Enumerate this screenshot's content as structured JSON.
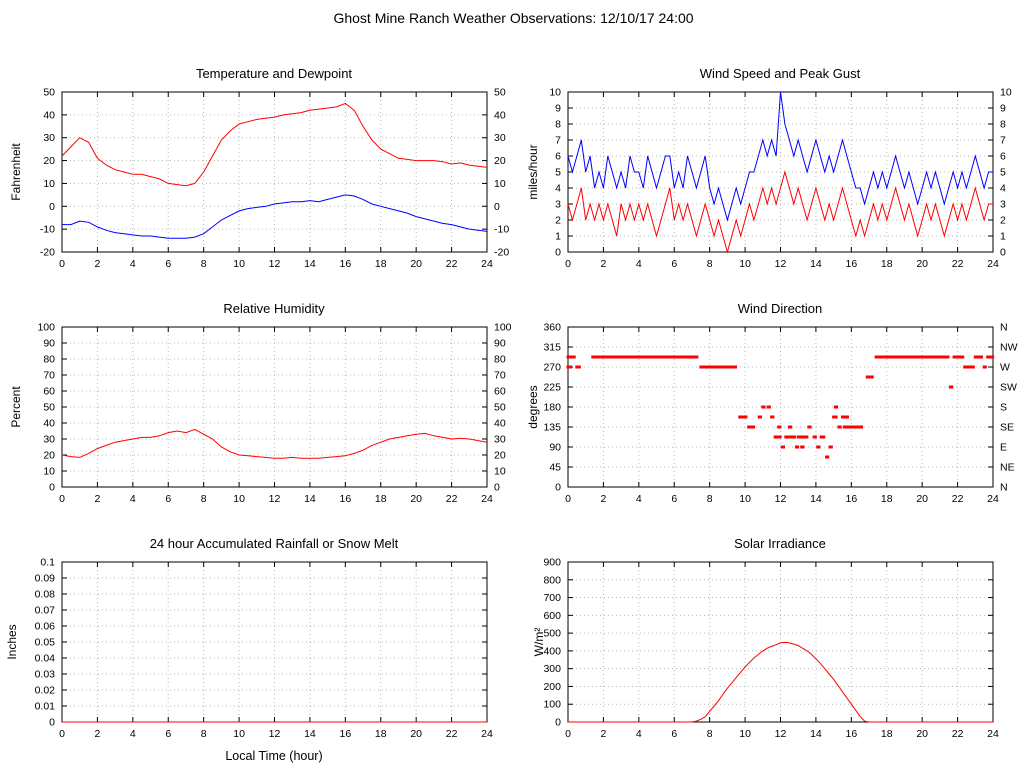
{
  "page_title": "Ghost Mine Ranch Weather Observations: 12/10/17 24:00",
  "colors": {
    "red": "#ff0000",
    "blue": "#0000ff",
    "grid": "#b8b8b8",
    "axis": "#000000"
  },
  "chart_data": [
    {
      "type": "line",
      "title": "Temperature and Dewpoint",
      "ylabel": "Fahrenheit",
      "xlim": [
        0,
        24
      ],
      "xtick_step": 2,
      "ylim": [
        -20,
        50
      ],
      "ytick_step": 10,
      "right_mirror": true,
      "x_start": 0,
      "x_step": 0.5,
      "series": [
        {
          "name": "Temperature",
          "color": "red",
          "values": [
            22,
            26,
            30,
            28,
            21,
            18,
            16,
            15,
            14,
            14,
            13,
            12,
            10,
            9.5,
            9,
            10,
            15,
            22,
            29,
            33,
            36,
            37,
            38,
            38.5,
            39,
            40,
            40.5,
            41,
            42,
            42.5,
            43,
            43.5,
            45,
            42,
            35,
            29,
            25,
            23,
            21,
            20.5,
            20,
            20,
            20,
            19.5,
            18.5,
            19,
            18,
            17.5,
            17
          ]
        },
        {
          "name": "Dewpoint",
          "color": "blue",
          "values": [
            -8,
            -8,
            -6.5,
            -7,
            -9,
            -10.5,
            -11.5,
            -12,
            -12.5,
            -13,
            -13,
            -13.5,
            -14,
            -14,
            -14,
            -13.5,
            -12,
            -9,
            -6,
            -4,
            -2,
            -1,
            -0.5,
            0,
            1,
            1.5,
            2,
            2,
            2.5,
            2,
            3,
            4,
            5,
            4.5,
            3,
            1,
            0,
            -1,
            -2,
            -3,
            -4.5,
            -5.5,
            -6.5,
            -7.5,
            -8,
            -9,
            -10,
            -10.5,
            -11
          ]
        }
      ]
    },
    {
      "type": "line",
      "title": "Wind Speed and Peak Gust",
      "ylabel": "miles/hour",
      "xlim": [
        0,
        24
      ],
      "xtick_step": 2,
      "ylim": [
        0,
        10
      ],
      "ytick_step": 1,
      "right_mirror": true,
      "x_start": 0,
      "x_step": 0.25,
      "series": [
        {
          "name": "Peak Gust",
          "color": "blue",
          "values": [
            6,
            5,
            6,
            7,
            5,
            6,
            4,
            5,
            4,
            6,
            5,
            4,
            5,
            4,
            6,
            5,
            5,
            4,
            6,
            5,
            4,
            5,
            6,
            6,
            4,
            5,
            4,
            6,
            5,
            4,
            5,
            6,
            4,
            3,
            4,
            3,
            2,
            3,
            4,
            3,
            4,
            5,
            5,
            6,
            7,
            6,
            7,
            6,
            10,
            8,
            7,
            6,
            7,
            6,
            5,
            6,
            7,
            6,
            5,
            6,
            5,
            6,
            7,
            6,
            5,
            4,
            4,
            3,
            4,
            5,
            4,
            5,
            4,
            5,
            6,
            5,
            4,
            5,
            4,
            3,
            4,
            5,
            4,
            5,
            4,
            3,
            4,
            5,
            4,
            5,
            4,
            5,
            6,
            5,
            4,
            5,
            5
          ]
        },
        {
          "name": "Wind Speed",
          "color": "red",
          "values": [
            3,
            2,
            3,
            4,
            2,
            3,
            2,
            3,
            2,
            3,
            2,
            1,
            3,
            2,
            3,
            2,
            3,
            2,
            3,
            2,
            1,
            2,
            3,
            4,
            2,
            3,
            2,
            3,
            2,
            1,
            2,
            3,
            2,
            1,
            2,
            1,
            0,
            1,
            2,
            1,
            2,
            3,
            2,
            3,
            4,
            3,
            4,
            3,
            4,
            5,
            4,
            3,
            4,
            3,
            2,
            3,
            4,
            3,
            2,
            3,
            2,
            3,
            4,
            3,
            2,
            1,
            2,
            1,
            2,
            3,
            2,
            3,
            2,
            3,
            4,
            3,
            2,
            3,
            2,
            1,
            2,
            3,
            2,
            3,
            2,
            1,
            2,
            3,
            2,
            3,
            2,
            3,
            4,
            3,
            2,
            3,
            3
          ]
        }
      ]
    },
    {
      "type": "line",
      "title": "Relative Humidity",
      "ylabel": "Percent",
      "xlim": [
        0,
        24
      ],
      "xtick_step": 2,
      "ylim": [
        0,
        100
      ],
      "ytick_step": 10,
      "right_mirror": true,
      "x_start": 0,
      "x_step": 0.5,
      "series": [
        {
          "name": "Relative Humidity",
          "color": "red",
          "values": [
            20,
            19,
            18.5,
            21,
            24,
            26,
            28,
            29,
            30,
            31,
            31,
            32,
            34,
            35,
            34,
            36,
            33,
            30,
            25,
            22,
            20,
            19.5,
            19,
            18.5,
            18,
            18,
            18.5,
            18,
            18,
            18,
            18.5,
            19,
            19.5,
            21,
            23,
            26,
            28,
            30,
            31,
            32,
            33,
            33.5,
            32,
            31,
            30,
            30.5,
            30,
            29,
            28
          ]
        }
      ]
    },
    {
      "type": "scatter",
      "title": "Wind Direction",
      "ylabel": "degrees",
      "xlim": [
        0,
        24
      ],
      "xtick_step": 2,
      "ylim": [
        0,
        360
      ],
      "ytick_step": 45,
      "right_labels": [
        "N",
        "NE",
        "E",
        "SE",
        "S",
        "SW",
        "W",
        "NW",
        "N"
      ],
      "series": [
        {
          "name": "Wind Direction",
          "color": "red",
          "segments": [
            [
              0.0,
              0.4,
              292.5
            ],
            [
              0.0,
              0.2,
              270
            ],
            [
              0.5,
              0.7,
              270
            ],
            [
              1.4,
              7.3,
              292.5
            ],
            [
              7.5,
              9.5,
              270
            ],
            [
              9.7,
              10.1,
              157.5
            ],
            [
              10.2,
              10.5,
              135
            ],
            [
              10.8,
              10.9,
              157.5
            ],
            [
              11.0,
              11.1,
              180
            ],
            [
              11.3,
              11.4,
              180
            ],
            [
              11.5,
              11.6,
              157.5
            ],
            [
              11.7,
              12.0,
              112.5
            ],
            [
              11.9,
              12.0,
              135
            ],
            [
              12.1,
              12.2,
              90
            ],
            [
              12.3,
              12.8,
              112.5
            ],
            [
              12.5,
              12.6,
              135
            ],
            [
              12.9,
              13.0,
              90
            ],
            [
              13.0,
              13.5,
              112.5
            ],
            [
              13.2,
              13.3,
              90
            ],
            [
              13.6,
              13.7,
              135
            ],
            [
              13.9,
              14.0,
              112.5
            ],
            [
              14.1,
              14.2,
              90
            ],
            [
              14.3,
              14.5,
              112.5
            ],
            [
              14.6,
              14.7,
              67.5
            ],
            [
              14.8,
              14.9,
              90
            ],
            [
              15.0,
              15.2,
              157.5
            ],
            [
              15.1,
              15.2,
              180
            ],
            [
              15.3,
              15.4,
              135
            ],
            [
              15.5,
              15.8,
              157.5
            ],
            [
              15.6,
              16.6,
              135
            ],
            [
              16.9,
              17.2,
              247.5
            ],
            [
              17.4,
              21.5,
              292.5
            ],
            [
              21.6,
              21.7,
              225
            ],
            [
              21.8,
              22.3,
              292.5
            ],
            [
              22.4,
              22.9,
              270
            ],
            [
              23.0,
              23.4,
              292.5
            ],
            [
              23.5,
              23.6,
              270
            ],
            [
              23.7,
              24.0,
              292.5
            ]
          ]
        }
      ]
    },
    {
      "type": "line",
      "title": "24 hour Accumulated Rainfall or Snow Melt",
      "ylabel": "Inches",
      "xlabel": "Local Time (hour)",
      "xlim": [
        0,
        24
      ],
      "xtick_step": 2,
      "ylim": [
        0,
        0.1
      ],
      "ytick_step": 0.01,
      "series": [
        {
          "name": "Rainfall",
          "color": "red",
          "x": [
            0,
            24
          ],
          "values": [
            0,
            0
          ]
        }
      ]
    },
    {
      "type": "line",
      "title": "Solar Irradiance",
      "ylabel": "W/m²",
      "xlim": [
        0,
        24
      ],
      "xtick_step": 2,
      "ylim": [
        0,
        900
      ],
      "ytick_step": 100,
      "x_start": 0,
      "x_step": 0.25,
      "series": [
        {
          "name": "Solar Irradiance",
          "color": "red",
          "values": [
            0,
            0,
            0,
            0,
            0,
            0,
            0,
            0,
            0,
            0,
            0,
            0,
            0,
            0,
            0,
            0,
            0,
            0,
            0,
            0,
            0,
            0,
            0,
            0,
            0,
            0,
            0,
            0,
            0,
            5,
            15,
            30,
            60,
            90,
            120,
            155,
            190,
            220,
            250,
            280,
            310,
            335,
            360,
            380,
            400,
            415,
            425,
            435,
            445,
            448,
            445,
            438,
            430,
            415,
            400,
            380,
            355,
            330,
            300,
            270,
            240,
            205,
            170,
            135,
            100,
            65,
            30,
            5,
            0,
            0,
            0,
            0,
            0,
            0,
            0,
            0,
            0,
            0,
            0,
            0,
            0,
            0,
            0,
            0,
            0,
            0,
            0,
            0,
            0,
            0,
            0,
            0,
            0,
            0,
            0,
            0,
            0
          ]
        }
      ]
    }
  ]
}
